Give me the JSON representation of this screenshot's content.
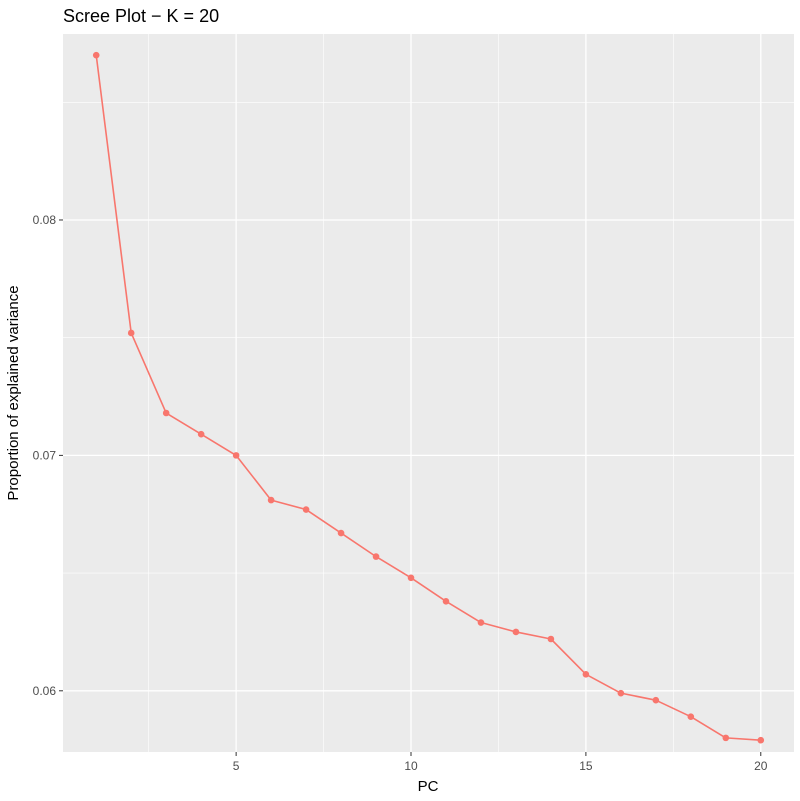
{
  "chart_data": {
    "type": "line",
    "title": "Scree Plot − K = 20",
    "xlabel": "PC",
    "ylabel": "Proportion of explained variance",
    "x": [
      1,
      2,
      3,
      4,
      5,
      6,
      7,
      8,
      9,
      10,
      11,
      12,
      13,
      14,
      15,
      16,
      17,
      18,
      19,
      20
    ],
    "series": [
      {
        "values": [
          0.087,
          0.0752,
          0.0718,
          0.0709,
          0.07,
          0.0681,
          0.0677,
          0.0667,
          0.0657,
          0.0648,
          0.0638,
          0.0629,
          0.0625,
          0.0622,
          0.0607,
          0.0599,
          0.0596,
          0.0589,
          0.058,
          0.0579
        ]
      }
    ],
    "xlim": [
      0.05,
      20.95
    ],
    "ylim": [
      0.0574,
      0.0879
    ],
    "x_ticks": [
      5,
      10,
      15,
      20
    ],
    "x_tick_labels": [
      "5",
      "10",
      "15",
      "20"
    ],
    "x_minor_ticks": [
      2.5,
      7.5,
      12.5,
      17.5
    ],
    "y_ticks": [
      0.06,
      0.07,
      0.08
    ],
    "y_tick_labels": [
      "0.06",
      "0.07",
      "0.08"
    ],
    "y_minor_ticks": [
      0.065,
      0.075,
      0.085
    ],
    "grid": true,
    "legend": "none",
    "colors": {
      "line": "#F8766D",
      "panel": "#EBEBEB",
      "grid": "#FFFFFF",
      "tick_text": "#4D4D4D",
      "axis_text": "#000000"
    }
  }
}
